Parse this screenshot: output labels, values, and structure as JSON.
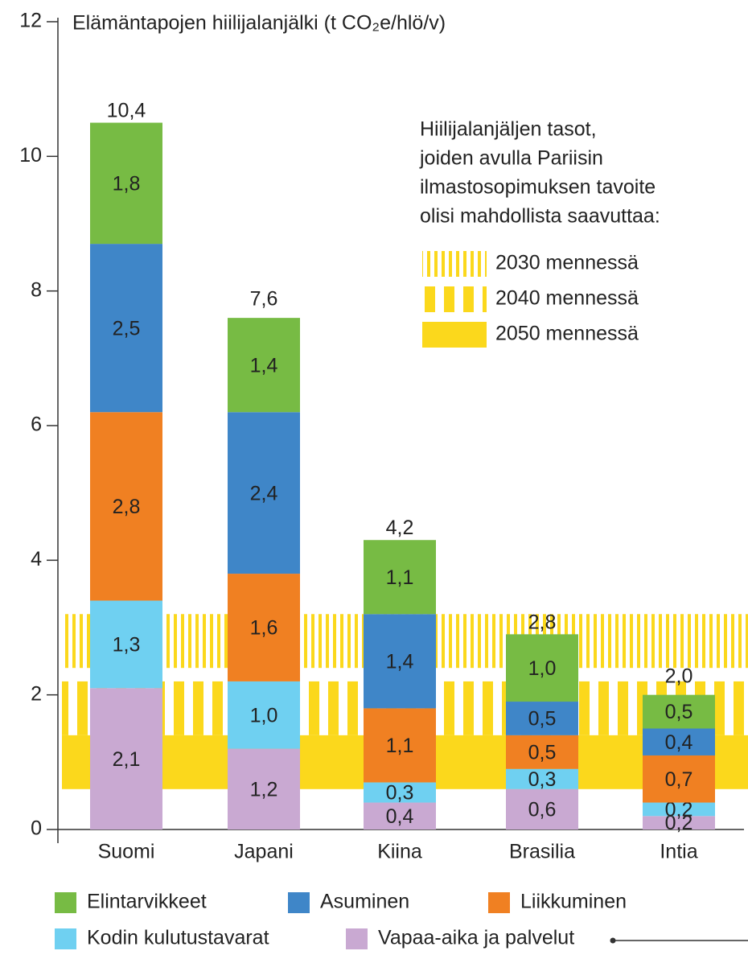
{
  "chart_data": {
    "type": "stacked_bar",
    "title": "Elämäntapojen hiilijalanjälki (t CO₂e/hlö/v)",
    "categories": [
      "Suomi",
      "Japani",
      "Kiina",
      "Brasilia",
      "Intia"
    ],
    "series": [
      {
        "name": "Elintarvikkeet",
        "color": "#77bb44",
        "values": [
          1.8,
          1.4,
          1.1,
          1.0,
          0.5
        ],
        "value_labels": [
          "1,8",
          "1,4",
          "1,1",
          "1,0",
          "0,5"
        ]
      },
      {
        "name": "Asuminen",
        "color": "#3f86c8",
        "values": [
          2.5,
          2.4,
          1.4,
          0.5,
          0.4
        ],
        "value_labels": [
          "2,5",
          "2,4",
          "1,4",
          "0,5",
          "0,4"
        ]
      },
      {
        "name": "Liikkuminen",
        "color": "#f08022",
        "values": [
          2.8,
          1.6,
          1.1,
          0.5,
          0.7
        ],
        "value_labels": [
          "2,8",
          "1,6",
          "1,1",
          "0,5",
          "0,7"
        ]
      },
      {
        "name": "Kodin kulutustavarat",
        "color": "#6fd0f1",
        "values": [
          1.3,
          1.0,
          0.3,
          0.3,
          0.2
        ],
        "value_labels": [
          "1,3",
          "1,0",
          "0,3",
          "0,3",
          "0,2"
        ]
      },
      {
        "name": "Vapaa-aika ja palvelut",
        "color": "#c9a9d2",
        "values": [
          2.1,
          1.2,
          0.4,
          0.6,
          0.2
        ],
        "value_labels": [
          "2,1",
          "1,2",
          "0,4",
          "0,6",
          "0,2"
        ]
      }
    ],
    "totals": [
      10.4,
      7.6,
      4.2,
      2.8,
      2.0
    ],
    "total_labels": [
      "10,4",
      "7,6",
      "4,2",
      "2,8",
      "2,0"
    ],
    "ylim": [
      0,
      12
    ],
    "yticks": [
      0,
      2,
      4,
      6,
      8,
      10,
      12
    ],
    "target_note_lines": [
      "Hiilijalanjäljen tasot,",
      "joiden avulla Pariisin",
      "ilmastosopimuksen tavoite",
      "olisi mahdollista saavuttaa:"
    ],
    "targets": [
      {
        "label": "2030 mennessä",
        "range": [
          2.4,
          3.2
        ],
        "color": "#fbd81c"
      },
      {
        "label": "2040 mennessä",
        "range": [
          1.4,
          2.2
        ],
        "color": "#fbd81c"
      },
      {
        "label": "2050 mennessä",
        "range": [
          0.6,
          1.4
        ],
        "color": "#fbd81c"
      }
    ]
  }
}
